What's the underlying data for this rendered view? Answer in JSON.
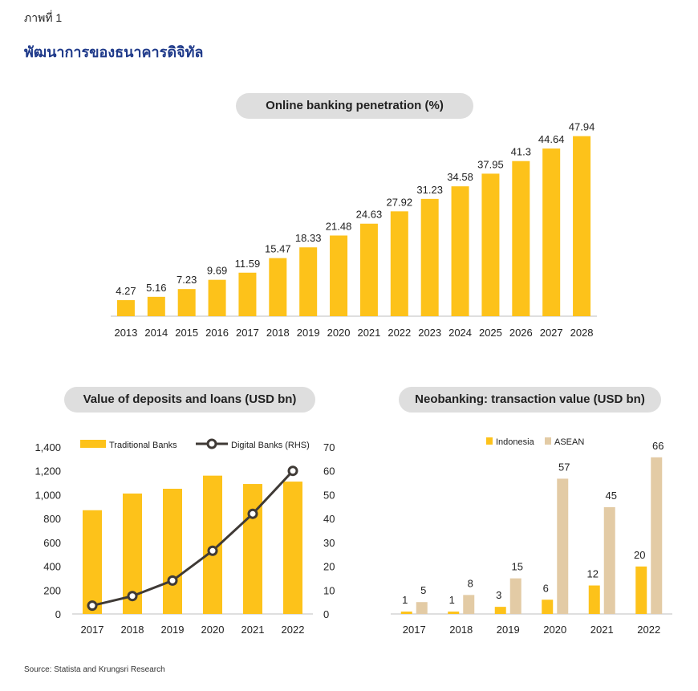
{
  "figure_label": "ภาพที่ 1",
  "figure_title": "พัฒนาการของธนาคารดิจิทัล",
  "source": "Source: Statista and Krungsri Research",
  "colors": {
    "gold": "#FDC21A",
    "beige": "#E3CBA5",
    "line": "#3f3a36",
    "pill": "#dedede",
    "title_blue": "#1f3a8a"
  },
  "chart_data": [
    {
      "type": "bar",
      "title": "Online banking penetration (%)",
      "categories": [
        "2013",
        "2014",
        "2015",
        "2016",
        "2017",
        "2018",
        "2019",
        "2020",
        "2021",
        "2022",
        "2023",
        "2024",
        "2025",
        "2026",
        "2027",
        "2028"
      ],
      "values": [
        4.27,
        5.16,
        7.23,
        9.69,
        11.59,
        15.47,
        18.33,
        21.48,
        24.63,
        27.92,
        31.23,
        34.58,
        37.95,
        41.3,
        44.64,
        47.94
      ],
      "value_labels": [
        "4.27",
        "5.16",
        "7.23",
        "9.69",
        "11.59",
        "15.47",
        "18.33",
        "21.48",
        "24.63",
        "27.92",
        "31.23",
        "34.58",
        "37.95",
        "41.3",
        "44.64",
        "47.94"
      ],
      "ylim": [
        0,
        50
      ],
      "grid": false
    },
    {
      "type": "bar+line",
      "title": "Value of deposits and loans (USD bn)",
      "categories": [
        "2017",
        "2018",
        "2019",
        "2020",
        "2021",
        "2022"
      ],
      "series": [
        {
          "name": "Traditional Banks",
          "type": "bar",
          "axis": "left",
          "values": [
            870,
            1010,
            1050,
            1160,
            1090,
            1110
          ]
        },
        {
          "name": "Digital Banks (RHS)",
          "type": "line",
          "axis": "right",
          "values": [
            3.5,
            7.5,
            14,
            26.5,
            42,
            60
          ]
        }
      ],
      "ylim_left": [
        0,
        1400
      ],
      "yticks_left": [
        "0",
        "200",
        "400",
        "600",
        "800",
        "1,000",
        "1,200",
        "1,400"
      ],
      "ylim_right": [
        0,
        70
      ],
      "yticks_right": [
        "0",
        "10",
        "20",
        "30",
        "40",
        "50",
        "60",
        "70"
      ],
      "legend": "top"
    },
    {
      "type": "bar",
      "title": "Neobanking: transaction value (USD bn)",
      "categories": [
        "2017",
        "2018",
        "2019",
        "2020",
        "2021",
        "2022"
      ],
      "series": [
        {
          "name": "Indonesia",
          "values": [
            1,
            1,
            3,
            6,
            12,
            20
          ],
          "labels": [
            "1",
            "1",
            "3",
            "6",
            "12",
            "20"
          ]
        },
        {
          "name": "ASEAN",
          "values": [
            5,
            8,
            15,
            57,
            45,
            66
          ],
          "labels": [
            "5",
            "8",
            "15",
            "57",
            "45",
            "66"
          ]
        }
      ],
      "ylim": [
        0,
        70
      ],
      "legend": "top"
    }
  ]
}
